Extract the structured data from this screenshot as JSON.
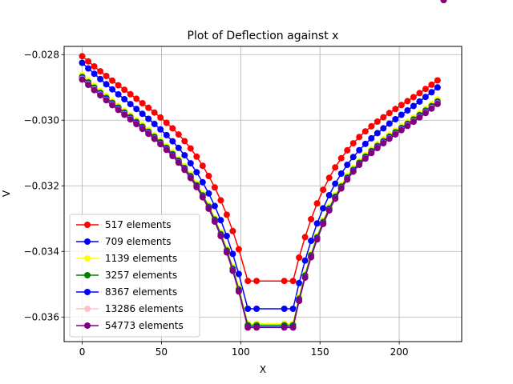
{
  "chart_data": {
    "type": "line",
    "title": "Plot of Deflection against x",
    "xlabel": "X",
    "ylabel": "V",
    "xlim": [
      -11.4,
      239.4
    ],
    "ylim": [
      -0.03675,
      -0.02775
    ],
    "xticks": [
      0,
      50,
      100,
      150,
      200
    ],
    "yticks": [
      -0.036,
      -0.034,
      -0.032,
      -0.03,
      -0.028
    ],
    "ytick_labels": [
      "−0.036",
      "−0.034",
      "−0.032",
      "−0.030",
      "−0.028"
    ],
    "grid": true,
    "legend_position": "lower-left",
    "series": [
      {
        "name": "517 elements",
        "color": "#ff0000",
        "x_step": 3.8,
        "params": {
          "a": -0.02805,
          "b": -0.03095,
          "c": -0.0349
        }
      },
      {
        "name": "709 elements",
        "color": "#0000ff",
        "x_step": 3.8,
        "params": {
          "a": -0.02825,
          "b": -0.0314,
          "c": -0.03575
        }
      },
      {
        "name": "1139 elements",
        "color": "#ffff00",
        "x_step": 3.8,
        "params": {
          "a": -0.02862,
          "b": -0.0317,
          "c": -0.0362
        }
      },
      {
        "name": "3257 elements",
        "color": "#008000",
        "x_step": 3.8,
        "params": {
          "a": -0.02868,
          "b": -0.03175,
          "c": -0.03625
        }
      },
      {
        "name": "8367 elements",
        "color": "#0000ff",
        "x_step": 3.8,
        "params": {
          "a": -0.02872,
          "b": -0.03178,
          "c": -0.0363
        }
      },
      {
        "name": "13286 elements",
        "color": "#ffc0cb",
        "x_step": 3.8,
        "params": {
          "a": -0.02874,
          "b": -0.0318,
          "c": -0.03632
        }
      },
      {
        "name": "54773 elements",
        "color": "#800080",
        "x_step": 3.8,
        "params": {
          "a": -0.02876,
          "b": -0.0318,
          "c": -0.03632
        }
      }
    ]
  }
}
